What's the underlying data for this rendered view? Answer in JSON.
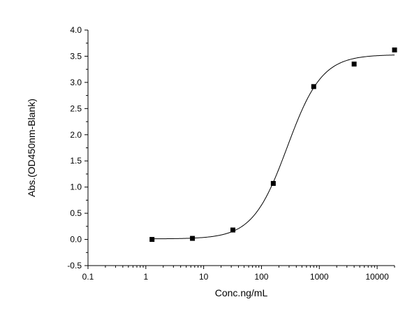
{
  "chart_data": {
    "type": "scatter",
    "title": "",
    "xlabel": "Conc.ng/mL",
    "ylabel": "Abs.(OD450nm-Blank)",
    "x_scale": "log",
    "xlim": [
      0.1,
      20000
    ],
    "ylim": [
      -0.5,
      4.0
    ],
    "x_ticks": [
      0.1,
      1,
      10,
      100,
      1000,
      10000
    ],
    "x_tick_labels": [
      "0.1",
      "1",
      "10",
      "100",
      "1000",
      "10000"
    ],
    "y_ticks": [
      -0.5,
      0.0,
      0.5,
      1.0,
      1.5,
      2.0,
      2.5,
      3.0,
      3.5,
      4.0
    ],
    "y_tick_labels": [
      "-0.5",
      "0.0",
      "0.5",
      "1.0",
      "1.5",
      "2.0",
      "2.5",
      "3.0",
      "3.5",
      "4.0"
    ],
    "grid": false,
    "legend": "none",
    "series": [
      {
        "marker": "square",
        "color": "#000000",
        "x": [
          1.28,
          6.4,
          32,
          160,
          800,
          4000,
          20000
        ],
        "y": [
          0.0,
          0.02,
          0.18,
          1.07,
          2.92,
          3.35,
          3.62
        ]
      }
    ],
    "fit_curve": {
      "type": "4PL",
      "color": "#000000",
      "bottom": 0.01,
      "top": 3.53,
      "ec50": 280,
      "hill": 1.45
    }
  }
}
